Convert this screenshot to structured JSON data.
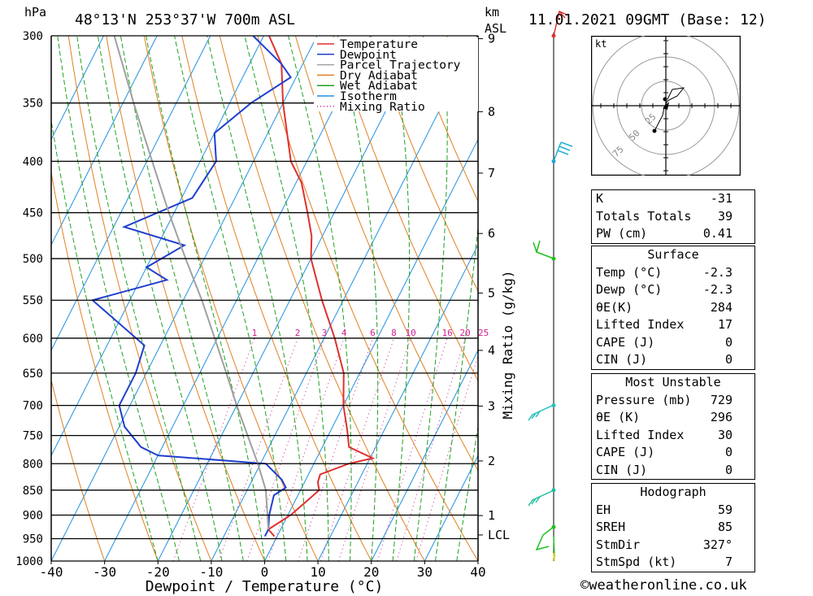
{
  "header": {
    "unit_hpa": "hPa",
    "location": "48°13'N 253°37'W 700m ASL",
    "unit_km": "km",
    "unit_asl": "ASL",
    "time": "11.01.2021 09GMT (Base: 12)"
  },
  "chart_data": {
    "type": "line",
    "xlabel": "Dewpoint / Temperature (°C)",
    "ylabel_right": "Mixing Ratio (g/kg)",
    "x_ticks": [
      -40,
      -30,
      -20,
      -10,
      0,
      10,
      20,
      30,
      40
    ],
    "xlim": [
      -40,
      40
    ],
    "ylim_hpa": [
      1000,
      300
    ],
    "pressure_ticks": [
      300,
      350,
      400,
      450,
      500,
      550,
      600,
      650,
      700,
      750,
      800,
      850,
      900,
      950,
      1000
    ],
    "height_ticks_km": [
      {
        "label": "9",
        "p": 302
      },
      {
        "label": "8",
        "p": 357
      },
      {
        "label": "7",
        "p": 411
      },
      {
        "label": "6",
        "p": 472
      },
      {
        "label": "5",
        "p": 541
      },
      {
        "label": "4",
        "p": 617
      },
      {
        "label": "3",
        "p": 701
      },
      {
        "label": "2",
        "p": 795
      },
      {
        "label": "1",
        "p": 901
      },
      {
        "label": "LCL",
        "p": 942
      }
    ],
    "mixing_ratio_labels": [
      "1",
      "2",
      "3",
      "4",
      "6",
      "8",
      "10",
      "16",
      "20",
      "25"
    ],
    "legend": [
      {
        "name": "Temperature",
        "color": "#e03030",
        "dash": false
      },
      {
        "name": "Dewpoint",
        "color": "#1f3fcf",
        "dash": false
      },
      {
        "name": "Parcel Trajectory",
        "color": "#a0a0a0",
        "dash": false
      },
      {
        "name": "Dry Adiabat",
        "color": "#e08020",
        "dash": false
      },
      {
        "name": "Wet Adiabat",
        "color": "#20a020",
        "dash": false
      },
      {
        "name": "Isotherm",
        "color": "#2090e0",
        "dash": false
      },
      {
        "name": "Mixing Ratio",
        "color": "#d02090",
        "dash": true
      }
    ],
    "series": [
      {
        "name": "Temperature",
        "color": "#e03030",
        "points": [
          [
            945,
            -0.5
          ],
          [
            930,
            -2.3
          ],
          [
            900,
            0.5
          ],
          [
            875,
            2
          ],
          [
            850,
            3.5
          ],
          [
            835,
            2.5
          ],
          [
            820,
            2.2
          ],
          [
            800,
            6.5
          ],
          [
            790,
            10.5
          ],
          [
            770,
            5
          ],
          [
            740,
            3
          ],
          [
            700,
            0
          ],
          [
            650,
            -3
          ],
          [
            600,
            -8
          ],
          [
            550,
            -14
          ],
          [
            500,
            -20
          ],
          [
            475,
            -22
          ],
          [
            450,
            -25
          ],
          [
            420,
            -29
          ],
          [
            400,
            -33
          ],
          [
            350,
            -40
          ],
          [
            320,
            -44
          ],
          [
            300,
            -49
          ]
        ]
      },
      {
        "name": "Dewpoint",
        "color": "#1f3fcf",
        "points": [
          [
            945,
            -2.3
          ],
          [
            930,
            -2.3
          ],
          [
            900,
            -3.5
          ],
          [
            860,
            -4.5
          ],
          [
            845,
            -3
          ],
          [
            830,
            -4.5
          ],
          [
            800,
            -9
          ],
          [
            785,
            -30
          ],
          [
            770,
            -34
          ],
          [
            735,
            -39
          ],
          [
            700,
            -42
          ],
          [
            650,
            -42
          ],
          [
            610,
            -43
          ],
          [
            550,
            -57
          ],
          [
            525,
            -45
          ],
          [
            510,
            -50
          ],
          [
            485,
            -45
          ],
          [
            465,
            -58
          ],
          [
            435,
            -48
          ],
          [
            400,
            -47
          ],
          [
            375,
            -50
          ],
          [
            350,
            -46
          ],
          [
            330,
            -41
          ],
          [
            320,
            -44
          ],
          [
            300,
            -52
          ]
        ]
      },
      {
        "name": "Parcel Trajectory",
        "color": "#a0a0a0",
        "points": [
          [
            930,
            -2.3
          ],
          [
            850,
            -6.5
          ],
          [
            800,
            -10.5
          ],
          [
            700,
            -20
          ],
          [
            650,
            -25
          ],
          [
            600,
            -30.5
          ],
          [
            550,
            -36.5
          ],
          [
            500,
            -43.5
          ],
          [
            450,
            -51
          ],
          [
            400,
            -59
          ],
          [
            350,
            -68
          ],
          [
            300,
            -78
          ]
        ]
      }
    ]
  },
  "hodograph": {
    "unit": "kt",
    "rings": [
      "25",
      "50",
      "75"
    ]
  },
  "indices": {
    "basic": [
      {
        "label": "K",
        "value": "-31"
      },
      {
        "label": "Totals Totals",
        "value": "39"
      },
      {
        "label": "PW (cm)",
        "value": "0.41"
      }
    ],
    "surface": {
      "title": "Surface",
      "rows": [
        {
          "label": "Temp (°C)",
          "value": "-2.3"
        },
        {
          "label": "Dewp (°C)",
          "value": "-2.3"
        },
        {
          "label": "θE(K)",
          "value": "284"
        },
        {
          "label": "Lifted Index",
          "value": "17"
        },
        {
          "label": "CAPE (J)",
          "value": "0"
        },
        {
          "label": "CIN (J)",
          "value": "0"
        }
      ]
    },
    "most_unstable": {
      "title": "Most Unstable",
      "rows": [
        {
          "label": "Pressure (mb)",
          "value": "729"
        },
        {
          "label": "θE (K)",
          "value": "296"
        },
        {
          "label": "Lifted Index",
          "value": "30"
        },
        {
          "label": "CAPE (J)",
          "value": "0"
        },
        {
          "label": "CIN (J)",
          "value": "0"
        }
      ]
    },
    "hodograph": {
      "title": "Hodograph",
      "rows": [
        {
          "label": "EH",
          "value": "59"
        },
        {
          "label": "SREH",
          "value": "85"
        },
        {
          "label": "StmDir",
          "value": "327°"
        },
        {
          "label": "StmSpd (kt)",
          "value": "7"
        }
      ]
    }
  },
  "copyright": "©weatheronline.co.uk"
}
